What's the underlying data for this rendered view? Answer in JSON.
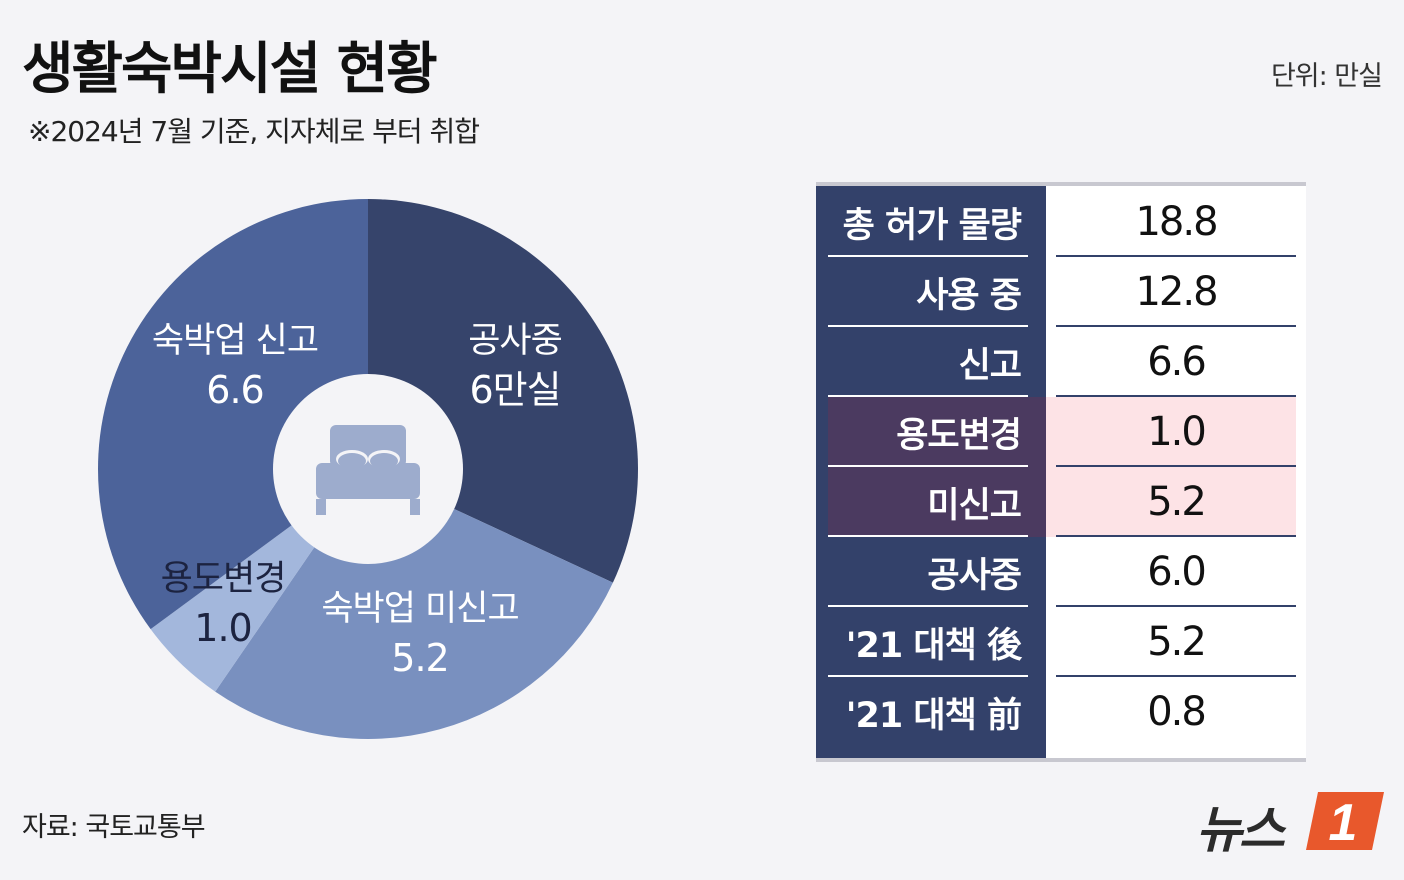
{
  "header": {
    "title": "생활숙박시설 현황",
    "subtitle": "※2024년 7월 기준, 지자체로 부터 취합",
    "unit": "단위: 만실"
  },
  "source": "자료: 국토교통부",
  "logo": {
    "text": "뉴스",
    "badge": "1"
  },
  "pie_labels": {
    "construction": {
      "name": "공사중",
      "value": "6만실"
    },
    "reported": {
      "name": "숙박업 신고",
      "value": "6.6"
    },
    "conversion": {
      "name": "용도변경",
      "value": "1.0"
    },
    "unreported": {
      "name": "숙박업 미신고",
      "value": "5.2"
    }
  },
  "table": {
    "rows": [
      {
        "label": "총 허가 물량",
        "value": "18.8",
        "highlight": false
      },
      {
        "label": "사용 중",
        "value": "12.8",
        "highlight": false
      },
      {
        "label": "신고",
        "value": "6.6",
        "highlight": false
      },
      {
        "label": "용도변경",
        "value": "1.0",
        "highlight": true
      },
      {
        "label": "미신고",
        "value": "5.2",
        "highlight": true
      },
      {
        "label": "공사중",
        "value": "6.0",
        "highlight": false
      },
      {
        "label": "'21 대책 後",
        "value": "5.2",
        "highlight": false
      },
      {
        "label": "'21 대책 前",
        "value": "0.8",
        "highlight": false
      }
    ]
  },
  "chart_data": {
    "type": "pie",
    "categories": [
      "공사중",
      "숙박업 미신고",
      "용도변경",
      "숙박업 신고"
    ],
    "values": [
      6.0,
      5.2,
      1.0,
      6.6
    ],
    "colors": [
      "#36446b",
      "#7990bf",
      "#a3b7dc",
      "#4c639a"
    ],
    "center_icon": "bed-icon",
    "donut": true
  }
}
